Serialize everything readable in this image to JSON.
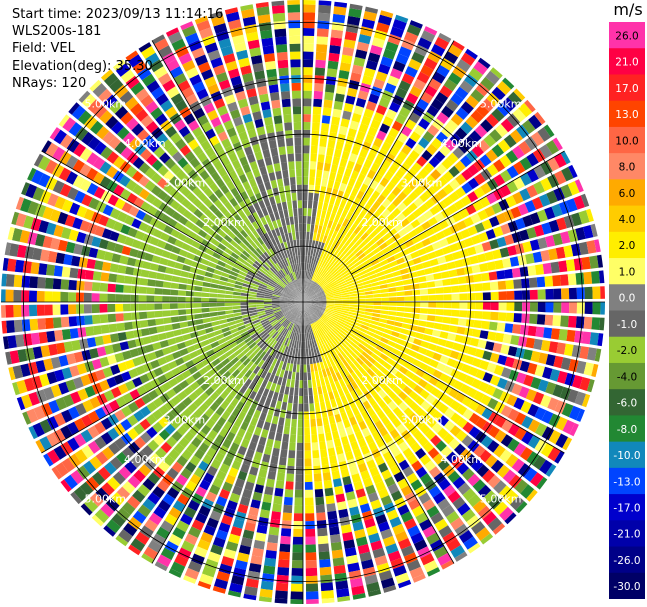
{
  "info": {
    "start_time": "Start time: 2023/09/13 11:14:16",
    "instrument": "WLS200s-181",
    "field": "Field: VEL",
    "elevation": "Elevation(deg): 35.30",
    "nrays": "NRays: 120"
  },
  "chart_data": {
    "type": "heatmap",
    "projection": "polar-ppi",
    "title": "",
    "colorbar": {
      "unit": "m/s",
      "levels": [
        "26.0",
        "21.0",
        "17.0",
        "13.0",
        "10.0",
        "8.0",
        "6.0",
        "4.0",
        "2.0",
        "1.0",
        "0.0",
        "-1.0",
        "-2.0",
        "-4.0",
        "-6.0",
        "-8.0",
        "-10.0",
        "-13.0",
        "-17.0",
        "-21.0",
        "-26.0",
        "-30.0"
      ],
      "colors": [
        "#ff33aa",
        "#ff0044",
        "#ff2222",
        "#ff4400",
        "#ff6644",
        "#ff8866",
        "#ffaa00",
        "#ffcc00",
        "#ffee00",
        "#ffff66",
        "#808080",
        "#666666",
        "#99cc33",
        "#669933",
        "#336633",
        "#228833",
        "#1188bb",
        "#0044ff",
        "#0000cc",
        "#0000aa",
        "#000088",
        "#000066"
      ]
    },
    "range_rings_km": [
      {
        "value": 1,
        "label": ""
      },
      {
        "value": 2,
        "label": "2.00km"
      },
      {
        "value": 3,
        "label": "3.00km"
      },
      {
        "value": 4,
        "label": "4.00km"
      },
      {
        "value": 5,
        "label": "5.00km"
      }
    ],
    "max_range_km": 5.4,
    "nrays": 120,
    "radial_lines_deg": [
      0,
      30,
      60,
      90,
      120,
      150,
      180,
      210,
      240,
      270,
      300,
      330
    ],
    "velocity_pattern": {
      "clean_radius_km": 3.2,
      "speckle_start_km": 3.7,
      "east_sector_yellow": true,
      "west_sector_green": true,
      "center_gray": true
    }
  }
}
